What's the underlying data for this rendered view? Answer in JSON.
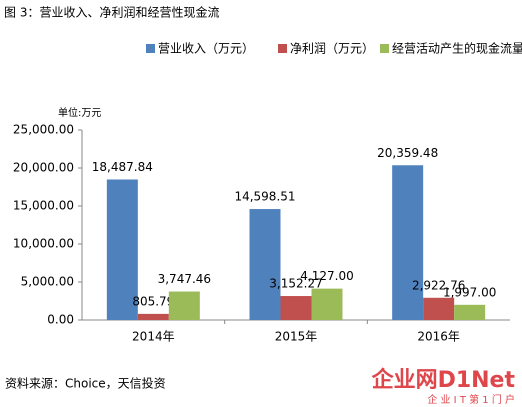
{
  "chart_data": {
    "type": "bar",
    "title": "图 3：营业收入、净利润和经营性现金流",
    "unit": "单位:万元",
    "categories": [
      "2014年",
      "2015年",
      "2016年"
    ],
    "series": [
      {
        "name": "营业收入（万元）",
        "color": "#4f81bd",
        "values": [
          18487.84,
          14598.51,
          20359.48
        ],
        "value_labels": [
          "18,487.84",
          "14,598.51",
          "20,359.48"
        ]
      },
      {
        "name": "净利润（万元）",
        "color": "#c0504d",
        "values": [
          805.79,
          3152.27,
          2922.76
        ],
        "value_labels": [
          "805.79",
          "3,152.27",
          "2,922.76"
        ]
      },
      {
        "name": "经营活动产生的现金流量净额(万元)",
        "color": "#9bbb59",
        "values": [
          3747.46,
          4127.0,
          1997.0
        ],
        "value_labels": [
          "3,747.46",
          "4,127.00",
          "1,997.00"
        ]
      }
    ],
    "ylim": [
      0,
      25000
    ],
    "yticks": [
      {
        "value": 0,
        "label": "0.00"
      },
      {
        "value": 5000,
        "label": "5,000.00"
      },
      {
        "value": 10000,
        "label": "10,000.00"
      },
      {
        "value": 15000,
        "label": "15,000.00"
      },
      {
        "value": 20000,
        "label": "20,000.00"
      },
      {
        "value": 25000,
        "label": "25,000.00"
      }
    ],
    "grid": false,
    "source": "资料来源：Choice，天信投资",
    "watermark": {
      "logo": "企业网D1Net",
      "slogan": "企 业 I T 第 1 门 户"
    }
  }
}
